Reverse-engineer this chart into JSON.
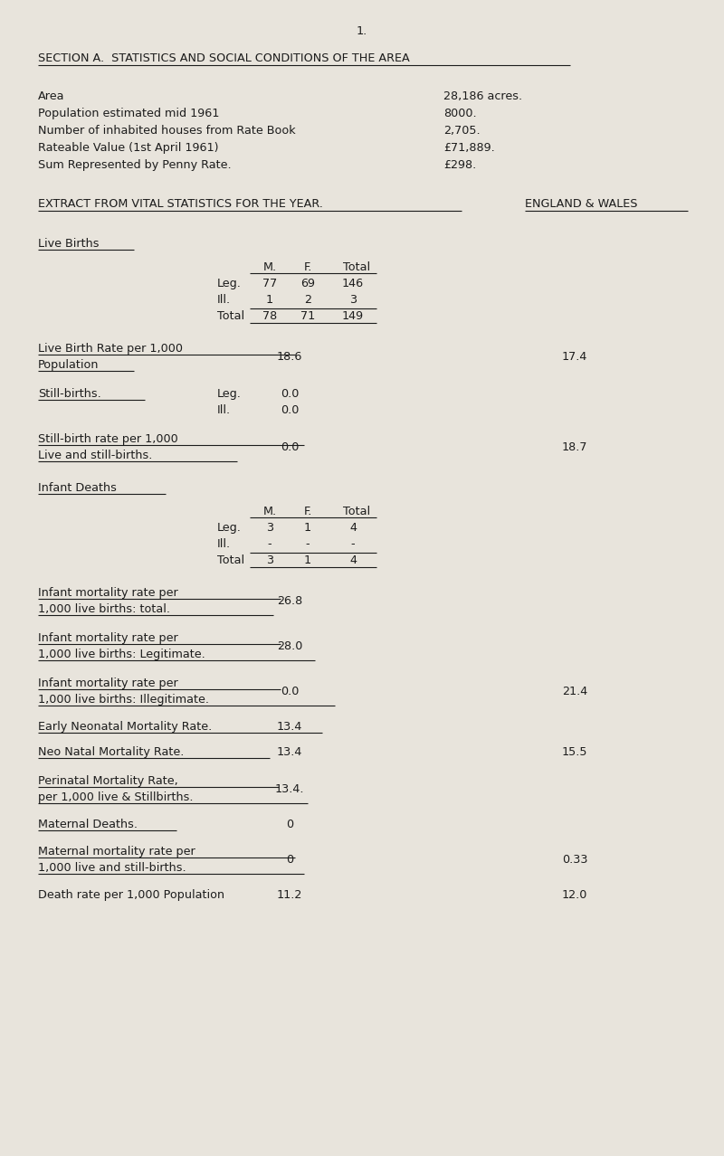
{
  "bg_color": "#e8e4dc",
  "text_color": "#1c1c1c",
  "page_num": "1.",
  "section_title": "SECTION A.  STATISTICS AND SOCIAL CONDITIONS OF THE AREA",
  "area_labels": [
    "Area",
    "Population estimated mid 1961",
    "Number of inhabited houses from Rate Book",
    "Rateable Value (1st April 1961)",
    "Sum Represented by Penny Rate."
  ],
  "area_values": [
    "28,186 acres.",
    "8000.",
    "2,705.",
    "£71,889.",
    "£298."
  ],
  "extract_heading": "EXTRACT FROM VITAL STATISTICS FOR THE YEAR.",
  "england_wales": "ENGLAND & WALES",
  "font_size": 9.2,
  "mono_font": "Courier New"
}
